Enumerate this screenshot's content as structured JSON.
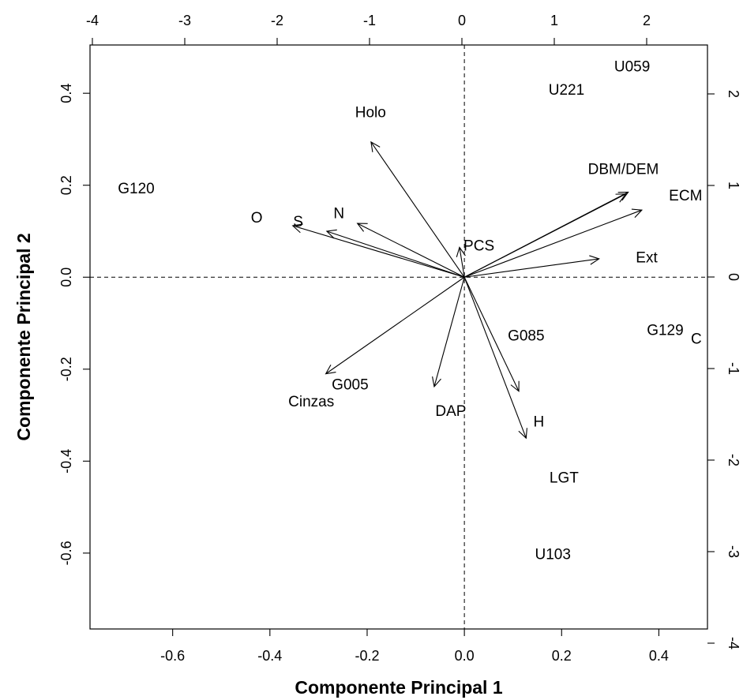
{
  "chart_data": {
    "type": "scatter",
    "subtype": "biplot",
    "title": "",
    "xlabel": "Componente Principal 1",
    "ylabel": "Componente Principal 2",
    "xlim": [
      -0.77,
      0.5
    ],
    "ylim": [
      -0.765,
      0.505
    ],
    "x_ticks": [
      -0.6,
      -0.4,
      -0.2,
      0.0,
      0.2,
      0.4
    ],
    "y_ticks": [
      -0.6,
      -0.4,
      -0.2,
      0.0,
      0.2,
      0.4
    ],
    "x_tick_labels": [
      "-0.6",
      "-0.4",
      "-0.2",
      "0.0",
      "0.2",
      "0.4"
    ],
    "y_tick_labels": [
      "-0.6",
      "-0.4",
      "-0.2",
      "0.0",
      "0.2",
      "0.4"
    ],
    "top_ticks": [
      -4,
      -3,
      -2,
      -1,
      0,
      1,
      2
    ],
    "top_tick_labels": [
      "-4",
      "-3",
      "-2",
      "-1",
      "0",
      "1",
      "2"
    ],
    "right_ticks": [
      -4,
      -3,
      -2,
      -1,
      0,
      1,
      2
    ],
    "right_tick_labels": [
      "-4",
      "-3",
      "-2",
      "-1",
      "0",
      "1",
      "2"
    ],
    "grid": false,
    "reference_lines": {
      "x": 0,
      "y": 0,
      "style": "dashed"
    },
    "points": [
      {
        "label": "U059",
        "x": 0.345,
        "y": 0.457
      },
      {
        "label": "U221",
        "x": 0.21,
        "y": 0.406
      },
      {
        "label": "G120",
        "x": -0.675,
        "y": 0.192
      },
      {
        "label": "O",
        "x": -0.427,
        "y": 0.128
      },
      {
        "label": "G129",
        "x": 0.413,
        "y": -0.116
      },
      {
        "label": "C",
        "x": 0.477,
        "y": -0.135
      },
      {
        "label": "G085",
        "x": 0.127,
        "y": -0.128
      },
      {
        "label": "G005",
        "x": -0.235,
        "y": -0.235
      },
      {
        "label": "DAP",
        "x": -0.028,
        "y": -0.292
      },
      {
        "label": "LGT",
        "x": 0.205,
        "y": -0.437
      },
      {
        "label": "U103",
        "x": 0.182,
        "y": -0.604
      }
    ],
    "loadings": [
      {
        "label": "Holo",
        "x": -0.192,
        "y": 0.294,
        "label_x": -0.193,
        "label_y": 0.357
      },
      {
        "label": "DBM/DEM",
        "x": 0.337,
        "y": 0.185,
        "label_x": 0.327,
        "label_y": 0.234
      },
      {
        "label": "",
        "x": 0.332,
        "y": 0.181
      },
      {
        "label": "ECM",
        "x": 0.365,
        "y": 0.146,
        "label_x": 0.455,
        "label_y": 0.176
      },
      {
        "label": "Ext",
        "x": 0.277,
        "y": 0.04,
        "label_x": 0.375,
        "label_y": 0.042
      },
      {
        "label": "PCS",
        "x": -0.01,
        "y": 0.065,
        "label_x": 0.03,
        "label_y": 0.067
      },
      {
        "label": "S",
        "x": -0.353,
        "y": 0.112,
        "label_x": -0.342,
        "label_y": 0.12
      },
      {
        "label": "N",
        "x": -0.283,
        "y": 0.1,
        "label_x": -0.258,
        "label_y": 0.138
      },
      {
        "label": "",
        "x": -0.22,
        "y": 0.117
      },
      {
        "label": "Cinzas",
        "x": -0.285,
        "y": -0.21,
        "label_x": -0.315,
        "label_y": -0.272
      },
      {
        "label": "",
        "x": -0.062,
        "y": -0.238
      },
      {
        "label": "",
        "x": 0.112,
        "y": -0.248
      },
      {
        "label": "H",
        "x": 0.127,
        "y": -0.35,
        "label_x": 0.153,
        "label_y": -0.315
      }
    ]
  }
}
